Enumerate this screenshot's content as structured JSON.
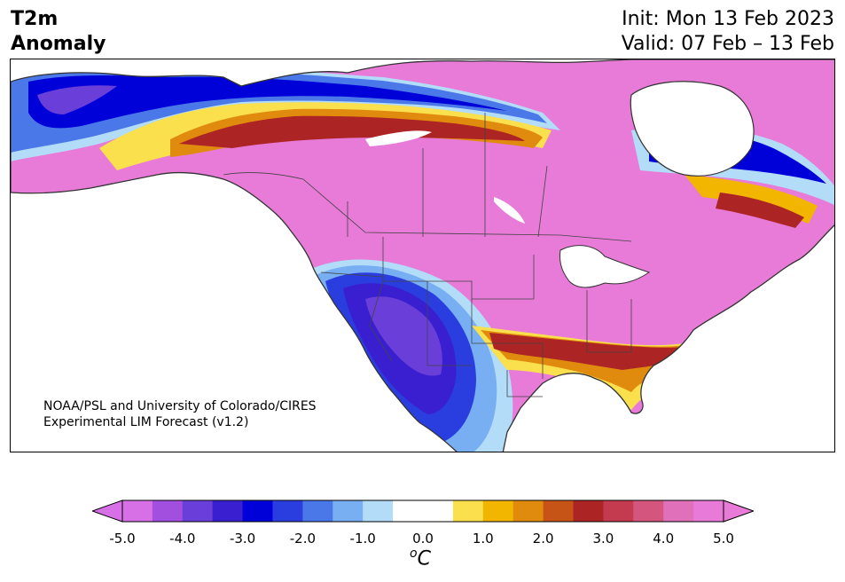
{
  "title": {
    "left_line1": "T2m",
    "left_line2": "Anomaly",
    "right_line1": "Init: Mon 13 Feb 2023",
    "right_line2": "Valid: 07 Feb – 13 Feb"
  },
  "credit": {
    "line1": "NOAA/PSL and University of Colorado/CIRES",
    "line2": "Experimental LIM Forecast (v1.2)"
  },
  "colorbar": {
    "tick_labels": [
      "-5.0",
      "-4.0",
      "-3.0",
      "-2.0",
      "-1.0",
      "0.0",
      "1.0",
      "2.0",
      "3.0",
      "4.0",
      "5.0"
    ],
    "unit_prefix": "o",
    "unit_main": "C",
    "colors": [
      "#d76fe6",
      "#a24fe0",
      "#6a3ed8",
      "#3a1fd0",
      "#0000d8",
      "#2a3ee0",
      "#4a78e8",
      "#78aef2",
      "#b2dcf8",
      "#ffffff",
      "#ffffff",
      "#fbe04e",
      "#f2b500",
      "#e08a0e",
      "#c65416",
      "#ad2424",
      "#c43a4e",
      "#d4567e",
      "#e070ba",
      "#e87ad8"
    ],
    "under_color": "#d76fe6",
    "over_color": "#e87ad8"
  }
}
